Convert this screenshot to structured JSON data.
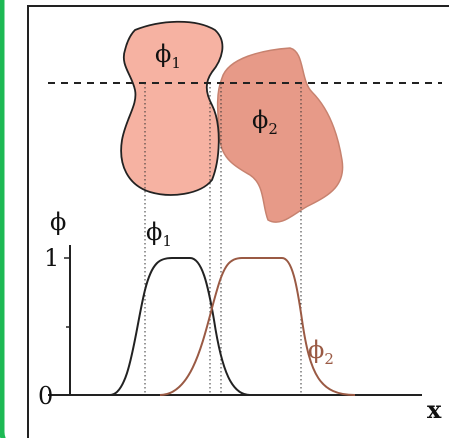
{
  "shapes": {
    "phi1": {
      "symbol": "ϕ",
      "subscript": "1"
    },
    "phi2": {
      "symbol": "ϕ",
      "subscript": "2"
    }
  },
  "graph": {
    "y_label": "ϕ",
    "y_tick_top": "1",
    "y_tick_bottom": "0",
    "x_label": "x",
    "curve1_label": {
      "symbol": "ϕ",
      "subscript": "1"
    },
    "curve2_label": {
      "symbol": "ϕ",
      "subscript": "2"
    }
  }
}
